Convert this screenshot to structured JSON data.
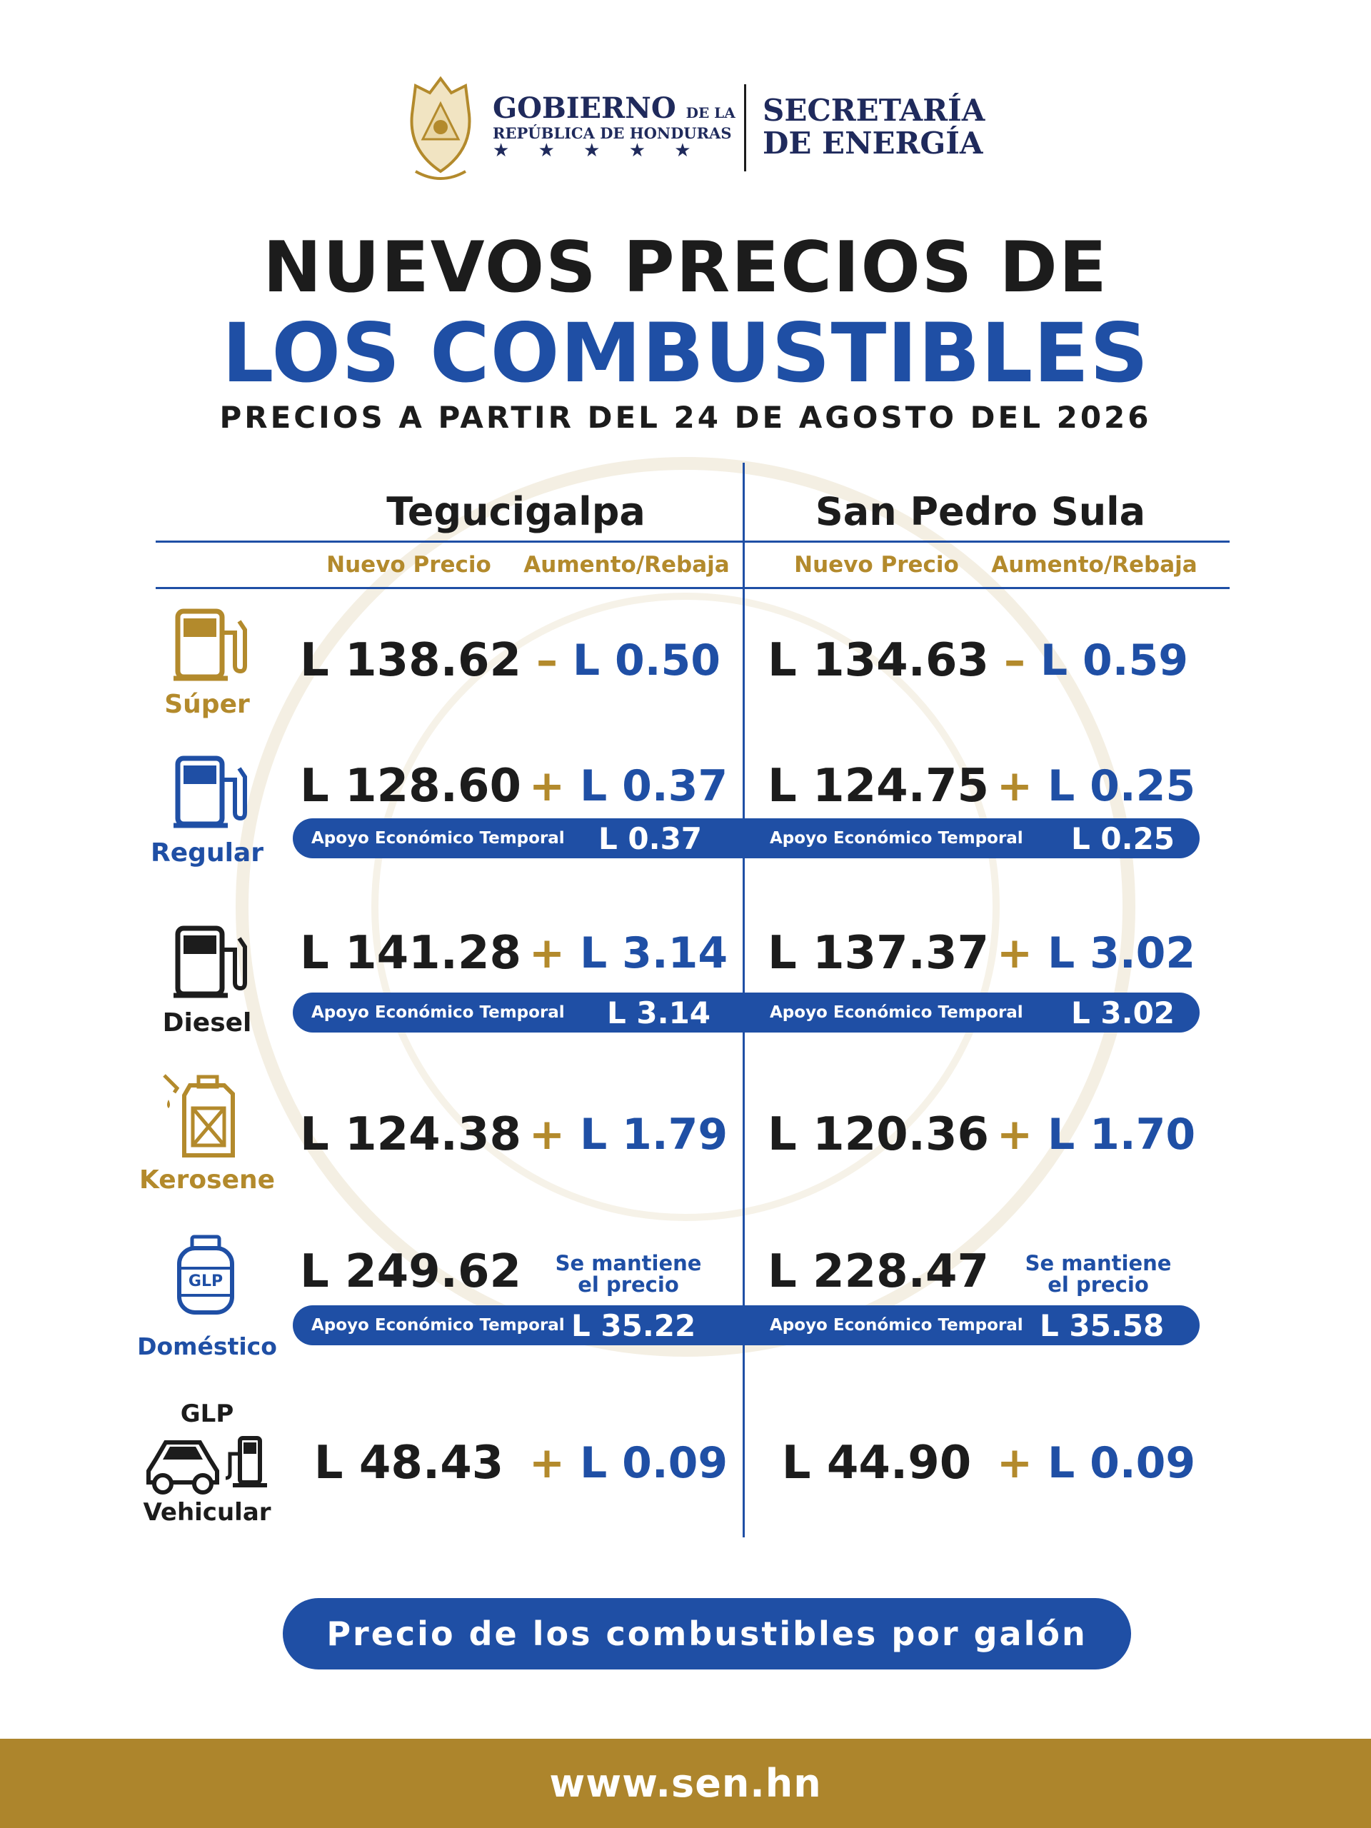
{
  "header": {
    "gov_line1": "GOBIERNO",
    "gov_line1_small": "DE LA",
    "gov_line2": "REPÚBLICA DE HONDURAS",
    "stars": "★ ★ ★ ★ ★",
    "secretaria_line1": "SECRETARÍA",
    "secretaria_line2": "DE ENERGÍA"
  },
  "title": {
    "line1": "NUEVOS PRECIOS DE",
    "line2": "LOS COMBUSTIBLES",
    "subtitle": "PRECIOS A PARTIR DEL 24 DE AGOSTO DEL 2026"
  },
  "columns": {
    "city1": "Tegucigalpa",
    "city2": "San Pedro Sula",
    "nuevo_precio": "Nuevo Precio",
    "aumento_rebaja": "Aumento/Rebaja"
  },
  "apoyo_label": "Apoyo Económico Temporal",
  "colors": {
    "blue": "#1f4fa5",
    "gold": "#b38a2c",
    "dark": "#1c1c1c"
  },
  "fuels": [
    {
      "name": "Súper",
      "icon": "gas-pump-icon",
      "tgu": {
        "price": "L 138.62",
        "sign": "–",
        "change": "L 0.50"
      },
      "sps": {
        "price": "L 134.63",
        "sign": "–",
        "change": "L 0.59"
      }
    },
    {
      "name": "Regular",
      "icon": "gas-pump-icon",
      "tgu": {
        "price": "L 128.60",
        "sign": "+",
        "change": "L 0.37",
        "apoyo": "L 0.37"
      },
      "sps": {
        "price": "L 124.75",
        "sign": "+",
        "change": "L 0.25",
        "apoyo": "L 0.25"
      }
    },
    {
      "name": "Diesel",
      "icon": "gas-pump-icon",
      "tgu": {
        "price": "L 141.28",
        "sign": "+",
        "change": "L 3.14",
        "apoyo": "L 3.14"
      },
      "sps": {
        "price": "L 137.37",
        "sign": "+",
        "change": "L 3.02",
        "apoyo": "L 3.02"
      }
    },
    {
      "name": "Kerosene",
      "icon": "jerrycan-icon",
      "tgu": {
        "price": "L 124.38",
        "sign": "+",
        "change": "L 1.79"
      },
      "sps": {
        "price": "L 120.36",
        "sign": "+",
        "change": "L 1.70"
      }
    },
    {
      "name": "Doméstico",
      "icon": "gas-cylinder-icon",
      "icon_text": "GLP",
      "tgu": {
        "price": "L 249.62",
        "keep1": "Se mantiene",
        "keep2": "el precio",
        "apoyo": "L 35.22"
      },
      "sps": {
        "price": "L 228.47",
        "keep1": "Se mantiene",
        "keep2": "el precio",
        "apoyo": "L 35.58"
      }
    },
    {
      "name": "Vehicular",
      "name_top": "GLP",
      "icon": "car-pump-icon",
      "tgu": {
        "price": "L 48.43",
        "sign": "+",
        "change": "L 0.09"
      },
      "sps": {
        "price": "L 44.90",
        "sign": "+",
        "change": "L 0.09"
      }
    }
  ],
  "footer": {
    "pill": "Precio de los combustibles por galón",
    "website": "www.sen.hn"
  }
}
